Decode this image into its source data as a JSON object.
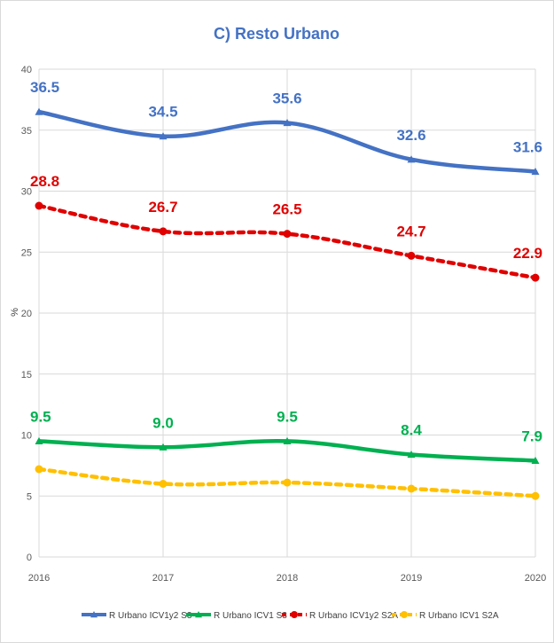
{
  "chart_data": {
    "type": "line",
    "title": "C) Resto Urbano",
    "ylabel": "%",
    "xlabel": "",
    "ylim": [
      0,
      40
    ],
    "yticks": [
      0,
      5,
      10,
      15,
      20,
      25,
      30,
      35,
      40
    ],
    "grid": "horizontal",
    "legend_position": "bottom",
    "categories": [
      "2016",
      "2017",
      "2018",
      "2019",
      "2020"
    ],
    "series": [
      {
        "name": "R Urbano ICV1y2 S3",
        "color": "#4472c4",
        "line_style": "solid",
        "marker": "triangle",
        "values": [
          36.5,
          34.5,
          35.6,
          32.6,
          31.6
        ],
        "labels": [
          "36.5",
          "34.5",
          "35.6",
          "32.6",
          "31.6"
        ]
      },
      {
        "name": "R Urbano ICV1 S3",
        "color": "#00b050",
        "line_style": "solid",
        "marker": "triangle",
        "values": [
          9.5,
          9.0,
          9.5,
          8.4,
          7.9
        ],
        "labels": [
          "9.5",
          "9.0",
          "9.5",
          "8.4",
          "7.9"
        ]
      },
      {
        "name": "R Urbano ICV1y2 S2A",
        "color": "#e00000",
        "line_style": "dashed",
        "marker": "circle",
        "values": [
          28.8,
          26.7,
          26.5,
          24.7,
          22.9
        ],
        "labels": [
          "28.8",
          "26.7",
          "26.5",
          "24.7",
          "22.9"
        ]
      },
      {
        "name": "R Urbano ICV1 S2A",
        "color": "#ffc000",
        "line_style": "dashed",
        "marker": "circle",
        "values": [
          7.2,
          6.0,
          6.1,
          5.6,
          5.0
        ],
        "labels": []
      }
    ]
  }
}
